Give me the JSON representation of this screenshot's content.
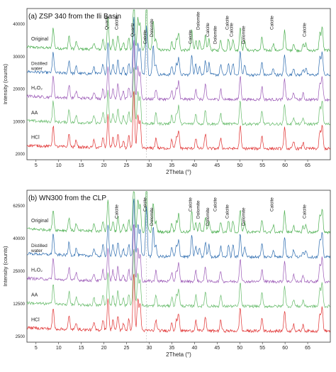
{
  "chart_data": [
    {
      "type": "line",
      "title": "(a) ZSP 340 from the Ili Basin",
      "xlabel": "2Theta (°)",
      "ylabel": "Intensity (counts)",
      "xlim": [
        3,
        70
      ],
      "x_ticks": [
        "5",
        "10",
        "15",
        "20",
        "25",
        "30",
        "35",
        "40",
        "45",
        "50",
        "55",
        "60",
        "65"
      ],
      "y_ticks": [
        "2000",
        "10000",
        "20000",
        "30000",
        "40000"
      ],
      "series": [
        {
          "name": "Original",
          "color": "#4caf50"
        },
        {
          "name": "Distilled water",
          "color": "#2e6db0"
        },
        {
          "name": "H₂O₂",
          "color": "#9b59b6"
        },
        {
          "name": "AA",
          "color": "#66bb6a"
        },
        {
          "name": "HCl",
          "color": "#e03030"
        }
      ],
      "peaks": [
        {
          "label": "Quartz",
          "x": 20.9
        },
        {
          "label": "Quartz",
          "x": 26.6
        },
        {
          "label": "Calcite",
          "x": 29.4
        },
        {
          "label": "Calcite",
          "x": 23.1
        },
        {
          "label": "Dolomite",
          "x": 30.9
        },
        {
          "label": "Calcite",
          "x": 39.4
        },
        {
          "label": "Dolomite",
          "x": 41.1
        },
        {
          "label": "Calcite",
          "x": 43.2
        },
        {
          "label": "Dolomite",
          "x": 44.9
        },
        {
          "label": "Calcite",
          "x": 47.5
        },
        {
          "label": "Calcite",
          "x": 48.5
        },
        {
          "label": "Dolomite",
          "x": 51.1
        },
        {
          "label": "Calcite",
          "x": 57.4
        },
        {
          "label": "Calcite",
          "x": 64.6
        }
      ]
    },
    {
      "type": "line",
      "title": "(b) WN300 from the CLP",
      "xlabel": "2Theta (°)",
      "ylabel": "Intensity (counts)",
      "xlim": [
        3,
        70
      ],
      "x_ticks": [
        "5",
        "10",
        "15",
        "20",
        "25",
        "30",
        "35",
        "40",
        "45",
        "50",
        "55",
        "60",
        "65"
      ],
      "y_ticks": [
        "2500",
        "12500",
        "25000",
        "40000",
        "62500"
      ],
      "series": [
        {
          "name": "Original",
          "color": "#4caf50"
        },
        {
          "name": "Distilled water",
          "color": "#2e6db0"
        },
        {
          "name": "H₂O₂",
          "color": "#9b59b6"
        },
        {
          "name": "AA",
          "color": "#66bb6a"
        },
        {
          "name": "HCl",
          "color": "#e03030"
        }
      ],
      "peaks": [
        {
          "label": "Calcite",
          "x": 29.4
        },
        {
          "label": "Calcite",
          "x": 23.1
        },
        {
          "label": "Dolomite",
          "x": 30.9
        },
        {
          "label": "Calcite",
          "x": 39.4
        },
        {
          "label": "Dolomite",
          "x": 41.1
        },
        {
          "label": "Dolomite",
          "x": 43.2
        },
        {
          "label": "Calcite",
          "x": 44.9
        },
        {
          "label": "Calcite",
          "x": 47.5
        },
        {
          "label": "Dolomite",
          "x": 51.1
        },
        {
          "label": "Calcite",
          "x": 57.4
        },
        {
          "label": "Calcite",
          "x": 64.6
        }
      ]
    }
  ]
}
